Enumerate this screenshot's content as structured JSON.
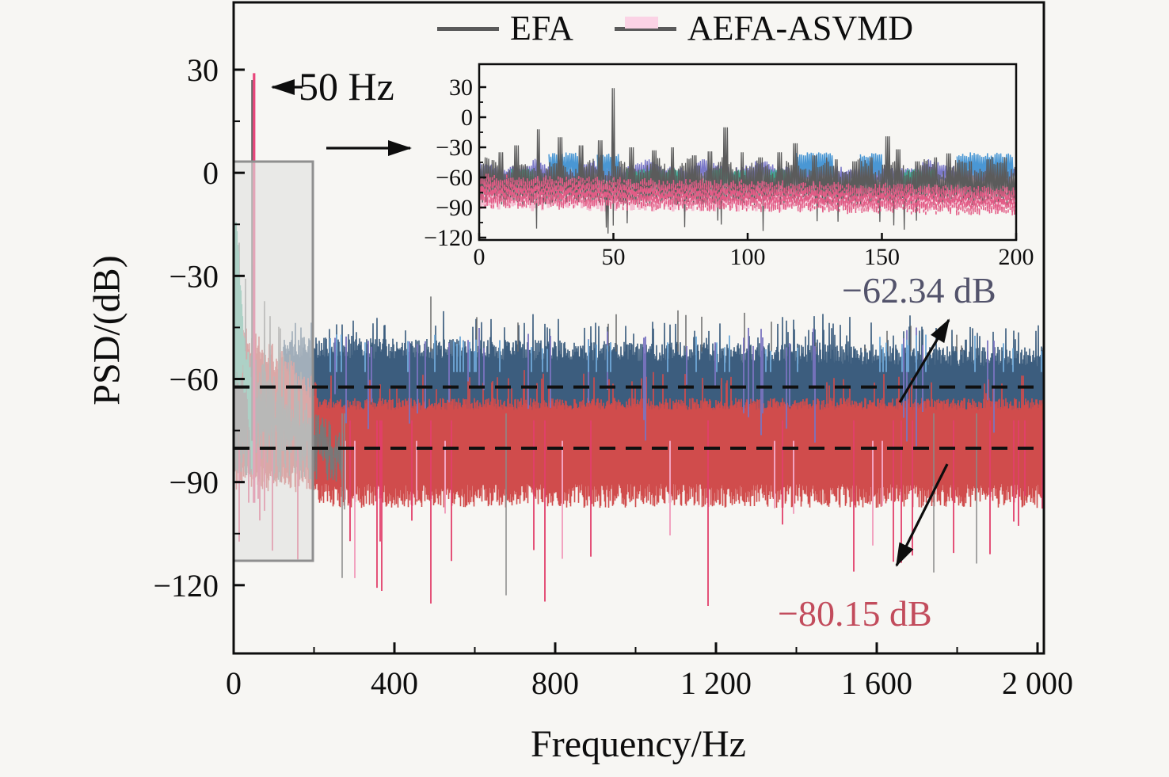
{
  "figure": {
    "background": "#f7f6f3",
    "axis_color": "#0d0d0d"
  },
  "legend": {
    "position": "top-center",
    "entries": [
      {
        "label": "EFA",
        "line_color": "#5a5a5a"
      },
      {
        "label": "AEFA-ASVMD",
        "line_color": "#5a5a5a",
        "highlight_color": "#fbd3e5"
      }
    ]
  },
  "chart_data": [
    {
      "id": "main",
      "type": "line",
      "title": "",
      "xlabel": "Frequency/Hz",
      "ylabel": "PSD/(dB)",
      "xlim": [
        0,
        2015
      ],
      "ylim": [
        -140,
        50
      ],
      "grid": false,
      "xticks": {
        "values": [
          0,
          400,
          800,
          1200,
          1600,
          2000
        ],
        "labels": [
          "0",
          "400",
          "800",
          "1 200",
          "1 600",
          "2 000"
        ]
      },
      "yticks": {
        "values": [
          30,
          0,
          -30,
          -60,
          -90,
          -120
        ],
        "labels": [
          "30",
          "0",
          "−30",
          "−60",
          "−90",
          "−120"
        ]
      },
      "series": [
        {
          "name": "EFA",
          "color": "#3c5d7e",
          "mean_noise_floor_db": -62.34,
          "band_top_db": -50,
          "band_bottom_db": -72,
          "deep_dips_to_db": -88
        },
        {
          "name": "AEFA-ASVMD",
          "color": "#d04c4c",
          "mean_noise_floor_db": -80.15,
          "band_top_db": -66,
          "band_bottom_db": -95,
          "deep_dips_to_db": -128,
          "peak": {
            "freq_hz": 50,
            "psd_db": 29
          }
        }
      ],
      "low_freq_transient": {
        "range_hz": [
          0,
          200
        ],
        "max_db": -10,
        "color": "#787878",
        "teal_spike": {
          "freq_hz": 6,
          "db": -11,
          "color": "#5ab89d"
        }
      },
      "accent_colors": {
        "crimson": "#e23f6b",
        "peak_spike": "#e8457a",
        "pink": "#f2a3c0",
        "deep_gray": "#8a8a8a",
        "gray_peaks": "#6a6a6a",
        "periwinkle": "#7a74c0",
        "light_blue": "#6fa8d8"
      },
      "reference_lines": [
        {
          "db": -62.34,
          "style": "dashed",
          "color": "#101010",
          "series": "EFA"
        },
        {
          "db": -80.15,
          "style": "dashed",
          "color": "#101010",
          "series": "AEFA-ASVMD"
        }
      ],
      "annotations": [
        {
          "text": "50 Hz",
          "color": "#0d0d0d",
          "points_to": "50 Hz peak"
        },
        {
          "text": "−62.34 dB",
          "color": "#53536b",
          "points_to": "EFA noise floor line"
        },
        {
          "text": "−80.15 dB",
          "color": "#c24c5c",
          "points_to": "AEFA-ASVMD noise floor line"
        }
      ],
      "zoom_region": {
        "freq_hz": [
          0,
          197
        ],
        "db": [
          3,
          -113
        ],
        "fill": "rgba(225,224,222,0.62)",
        "border": "#8f8f8f"
      }
    },
    {
      "id": "inset",
      "type": "line",
      "xlim": [
        0,
        200
      ],
      "ylim": [
        -122,
        53
      ],
      "xticks": {
        "values": [
          0,
          50,
          100,
          150,
          200
        ],
        "labels": [
          "0",
          "50",
          "100",
          "150",
          "200"
        ]
      },
      "yticks": {
        "values": [
          30,
          0,
          -30,
          -60,
          -90,
          -120
        ],
        "labels": [
          "30",
          "0",
          "−30",
          "−60",
          "−90",
          "−120"
        ]
      },
      "series": [
        {
          "name": "EFA",
          "color": "#5b5b5b",
          "peaks": [
            {
              "freq_hz": 50,
              "psd_db": 29
            },
            {
              "freq_hz": 92,
              "psd_db": -10
            },
            {
              "freq_hz": 152,
              "psd_db": -19
            },
            {
              "freq_hz": 22,
              "psd_db": -12
            }
          ]
        },
        {
          "name": "AEFA-ASVMD",
          "color": "#e25c86",
          "band_top_db": -58,
          "band_bottom_db": -90
        },
        {
          "name": "component-periwinkle",
          "color": "#7a78c8"
        },
        {
          "name": "component-blue",
          "color": "#4a97d4"
        },
        {
          "name": "component-green",
          "color": "#3da88a"
        },
        {
          "name": "component-pink-shadow",
          "color": "#f5bfd2"
        }
      ]
    }
  ]
}
